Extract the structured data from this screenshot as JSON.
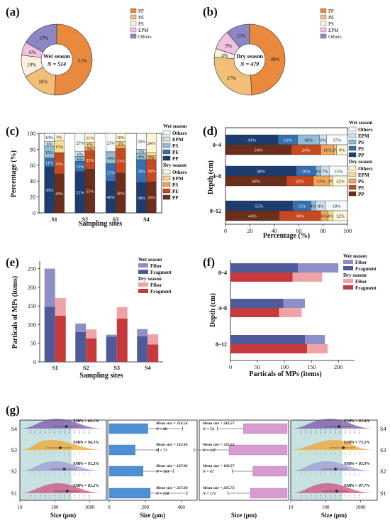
{
  "colors": {
    "PP": "#e8893e",
    "PE": "#f1bf77",
    "PS": "#fbf1dc",
    "EPM": "#f0c2e0",
    "Others": "#8c86c4",
    "wet_PP": "#1d3d6e",
    "wet_PE": "#3570b0",
    "wet_PS": "#8fbcd8",
    "wet_EPM": "#cde2ee",
    "wet_Others": "#f5fafc",
    "dry_PP": "#6a2e1a",
    "dry_PE": "#c6491f",
    "dry_PS": "#f0a55a",
    "dry_EPM": "#f9da8e",
    "dry_Others": "#fdf6d9",
    "wet_Fiber": "#8e8fc6",
    "wet_Fragment": "#4f5a98",
    "dry_Fiber": "#eea3a6",
    "dry_Fragment": "#c73a3c",
    "teal_bg": "#c6e2e1"
  },
  "legend_polymers": [
    "PP",
    "PE",
    "PS",
    "EPM",
    "Others"
  ],
  "chart_data": [
    {
      "id": "a",
      "type": "pie",
      "panel_label": "(a)",
      "center_title": "Wet season",
      "center_n": "N = 514",
      "categories": [
        "PP",
        "PE",
        "PS",
        "EPM",
        "Others"
      ],
      "values": [
        51,
        16,
        10,
        6,
        17
      ],
      "labels": [
        "51%",
        "16%",
        "10%",
        "6%",
        "17%"
      ]
    },
    {
      "id": "b",
      "type": "pie",
      "panel_label": "(b)",
      "center_title": "Dry season",
      "center_n": "N = 479",
      "categories": [
        "PP",
        "PE",
        "PS",
        "EPM",
        "Others"
      ],
      "values": [
        49,
        27,
        4,
        9,
        11
      ],
      "labels": [
        "49%",
        "27%",
        "4%",
        "9%",
        "11%"
      ]
    },
    {
      "id": "c",
      "type": "bar",
      "panel_label": "(c)",
      "xlabel": "Sampling sites",
      "ylabel": "Percentage (%)",
      "categories": [
        "S1",
        "S2",
        "S3",
        "S4"
      ],
      "ylim": [
        0,
        100
      ],
      "yticks": [
        "0",
        "20",
        "40",
        "60",
        "80",
        "100"
      ],
      "legend_wet_title": "Wet season",
      "legend_dry_title": "Dry season",
      "stack_order": [
        "PP",
        "PE",
        "PS",
        "EPM",
        "Others"
      ],
      "wet": [
        {
          "PP": 58,
          "PE": 11,
          "PS": 15,
          "EPM": 6,
          "Others": 10
        },
        {
          "PP": 52,
          "PE": 13,
          "PS": 6,
          "EPM": 6,
          "Others": 23
        },
        {
          "PP": 40,
          "PE": 22,
          "PS": 14,
          "EPM": 1,
          "Others": 23
        },
        {
          "PP": 38,
          "PE": 29,
          "PS": 8,
          "EPM": 5,
          "Others": 20
        }
      ],
      "wet_labels": [
        {
          "PP": "58%",
          "PE": "11%",
          "PS": "15%",
          "EPM": "6%",
          "Others": "10%"
        },
        {
          "PP": "52%",
          "PE": "13%",
          "PS": "6%",
          "EPM": "6%",
          "Others": "23%"
        },
        {
          "PP": "40%",
          "PE": "22%",
          "PS": "14%",
          "EPM": "",
          "Others": "23%"
        },
        {
          "PP": "38%",
          "PE": "29%",
          "PS": "8%",
          "EPM": "5%",
          "Others": "20%"
        }
      ],
      "dry": [
        {
          "PP": 49,
          "PE": 26,
          "PS": 1,
          "EPM": 15,
          "Others": 9
        },
        {
          "PP": 55,
          "PE": 23,
          "PS": 5,
          "EPM": 6,
          "Others": 11
        },
        {
          "PP": 50,
          "PE": 31,
          "PS": 4,
          "EPM": 5,
          "Others": 10
        },
        {
          "PP": 39,
          "PE": 28,
          "PS": 5,
          "EPM": 4,
          "Others": 24
        }
      ],
      "dry_labels": [
        {
          "PP": "49%",
          "PE": "26%",
          "PS": "1%",
          "EPM": "15%",
          "Others": "9%"
        },
        {
          "PP": "55%",
          "PE": "23%",
          "PS": "5%",
          "EPM": "6%",
          "Others": "11%"
        },
        {
          "PP": "50%",
          "PE": "31%",
          "PS": "4%",
          "EPM": "5%",
          "Others": "10%"
        },
        {
          "PP": "39%",
          "PE": "28%",
          "PS": "5%",
          "EPM": "4%",
          "Others": "24%"
        }
      ]
    },
    {
      "id": "d",
      "type": "bar",
      "orientation": "horizontal",
      "panel_label": "(d)",
      "xlabel": "Percentage (%)",
      "ylabel": "Depth (cm)",
      "categories": [
        "0~4",
        "4~8",
        "8~12"
      ],
      "xlim": [
        0,
        100
      ],
      "xticks": [
        "0",
        "20",
        "40",
        "60",
        "80",
        "100"
      ],
      "legend_wet_title": "Wet season",
      "legend_dry_title": "Dry season",
      "stack_order": [
        "PP",
        "PE",
        "PS",
        "EPM",
        "Others"
      ],
      "wet": [
        {
          "PP": 43,
          "PE": 16,
          "PS": 18,
          "EPM": 6,
          "Others": 17
        },
        {
          "PP": 58,
          "PE": 16,
          "PS": 4,
          "EPM": 7,
          "Others": 15
        },
        {
          "PP": 55,
          "PE": 15,
          "PS": 4,
          "EPM": 8,
          "Others": 18
        }
      ],
      "wet_labels": [
        {
          "PP": "43%",
          "PE": "16%",
          "PS": "18%",
          "EPM": "6%",
          "Others": "17%"
        },
        {
          "PP": "58%",
          "PE": "16%",
          "PS": "4%",
          "EPM": "7%",
          "Others": "15%"
        },
        {
          "PP": "55%",
          "PE": "15%",
          "PS": "4%",
          "EPM": "8%",
          "Others": "18%"
        }
      ],
      "dry": [
        {
          "PP": 54,
          "PE": 24,
          "PS": 11,
          "EPM": 2,
          "Others": 9
        },
        {
          "PP": 50,
          "PE": 22,
          "PS": 13,
          "EPM": 3,
          "Others": 12
        },
        {
          "PP": 44,
          "PE": 34,
          "PS": 6,
          "EPM": 4,
          "Others": 12
        }
      ],
      "dry_labels": [
        {
          "PP": "54%",
          "PE": "24%",
          "PS": "11%",
          "EPM": "2%",
          "Others": "9%"
        },
        {
          "PP": "50%",
          "PE": "22%",
          "PS": "13%",
          "EPM": "3%",
          "Others": "12%"
        },
        {
          "PP": "44%",
          "PE": "34%",
          "PS": "6%",
          "EPM": "4%",
          "Others": "12%"
        }
      ]
    },
    {
      "id": "e",
      "type": "bar",
      "panel_label": "(e)",
      "xlabel": "Sampling sites",
      "ylabel": "Particals of MPs (items)",
      "categories": [
        "S1",
        "S2",
        "S3",
        "S4"
      ],
      "ylim": [
        0,
        270
      ],
      "yticks": [
        "0",
        "50",
        "100",
        "150",
        "200",
        "250"
      ],
      "legend_wet_title": "Wet season",
      "legend_dry_title": "Dry season",
      "stack_labels": [
        "Fiber",
        "Fragment"
      ],
      "wet": [
        {
          "Fragment": 148,
          "Fiber": 102
        },
        {
          "Fragment": 80,
          "Fiber": 23
        },
        {
          "Fragment": 68,
          "Fiber": 5
        },
        {
          "Fragment": 69,
          "Fiber": 19
        }
      ],
      "dry": [
        {
          "Fragment": 124,
          "Fiber": 47
        },
        {
          "Fragment": 63,
          "Fiber": 24
        },
        {
          "Fragment": 116,
          "Fiber": 31
        },
        {
          "Fragment": 47,
          "Fiber": 27
        }
      ]
    },
    {
      "id": "f",
      "type": "bar",
      "orientation": "horizontal",
      "panel_label": "(f)",
      "xlabel": "Particals of MPs (items)",
      "ylabel": "Depth (cm)",
      "categories": [
        "0~4",
        "4~8",
        "8~12"
      ],
      "xlim": [
        0,
        230
      ],
      "xticks": [
        "0",
        "50",
        "100",
        "150",
        "200"
      ],
      "legend_wet_title": "Wet season",
      "legend_dry_title": "Dry season",
      "stack_labels": [
        "Fiber",
        "Fragment"
      ],
      "wet": [
        {
          "Fragment": 125,
          "Fiber": 75
        },
        {
          "Fragment": 98,
          "Fiber": 40
        },
        {
          "Fragment": 138,
          "Fiber": 37
        }
      ],
      "dry": [
        {
          "Fragment": 115,
          "Fiber": 55
        },
        {
          "Fragment": 90,
          "Fiber": 42
        },
        {
          "Fragment": 142,
          "Fiber": 38
        }
      ]
    },
    {
      "id": "g",
      "type": "scatter",
      "panel_label": "(g)",
      "categories": [
        "S1",
        "S2",
        "S3",
        "S4"
      ],
      "xlabel_left": "Size (μm)",
      "xlabel_mid_left": "Size (μm)",
      "xlabel_mid_right": "Size (μm)",
      "xlabel_right": "Size (μm)",
      "log_xticks": [
        "10",
        "100",
        "1000"
      ],
      "mid_xticks": [
        "0",
        "200",
        "400"
      ],
      "wet_smps": [
        "SMPs = 81.2%",
        "SMPs = 91.2%",
        "SMPs = 94.5%",
        "SMPs = 84.1%"
      ],
      "dry_smps": [
        "SMPs = 87.7%",
        "SMPs = 85.9%",
        "SMPs = 73.5%",
        "SMPs = 82.4%"
      ],
      "wet_mean": [
        227.8,
        187.86,
        143.84,
        214.54
      ],
      "wet_n": [
        250,
        103,
        73,
        88
      ],
      "dry_mean": [
        205.73,
        190.57,
        322.52,
        242.57
      ],
      "dry_n": [
        171,
        87,
        147,
        74
      ],
      "wet_mean_text": [
        "Mean size = 227.80",
        "Mean size = 187.86",
        "Mean size = 143.84",
        "Mean size = 214.54"
      ],
      "wet_n_text": [
        "N = 250",
        "N = 103",
        "N = 73",
        "N = 88"
      ],
      "dry_mean_text": [
        "Mean size = 205.73",
        "Mean size = 190.57",
        "Mean size = 322.52",
        "Mean size = 242.57"
      ],
      "dry_n_text": [
        "N = 171",
        "N = 87",
        "N = 147",
        "N = 74"
      ],
      "site_colors": [
        "#cf4f86",
        "#9d9ad3",
        "#f0a42c",
        "#7a56a8"
      ]
    }
  ]
}
